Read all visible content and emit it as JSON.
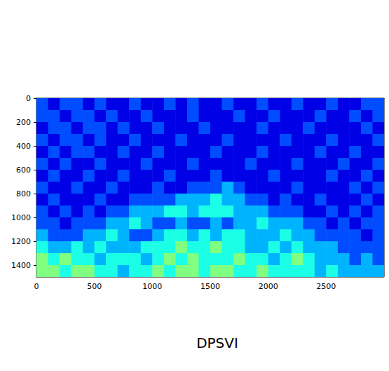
{
  "chart_data": {
    "type": "heatmap",
    "title": "DPSVI",
    "x_bins": [
      0,
      100,
      200,
      300,
      400,
      500,
      600,
      700,
      800,
      900,
      1000,
      1100,
      1200,
      1300,
      1400,
      1500,
      1600,
      1700,
      1800,
      1900,
      2000,
      2100,
      2200,
      2300,
      2400,
      2500,
      2600,
      2700,
      2800,
      2900,
      3000
    ],
    "y_bins": [
      0,
      100,
      200,
      300,
      400,
      500,
      600,
      700,
      800,
      900,
      1000,
      1100,
      1200,
      1300,
      1400,
      1500
    ],
    "cells": [
      [
        3,
        2,
        3,
        3,
        2,
        3,
        2,
        2,
        3,
        2,
        2,
        3,
        2,
        3,
        2,
        2,
        3,
        2,
        2,
        3,
        2,
        2,
        3,
        2,
        2,
        3,
        2,
        2,
        3,
        3
      ],
      [
        3,
        3,
        2,
        3,
        3,
        2,
        3,
        2,
        2,
        3,
        2,
        2,
        2,
        3,
        2,
        2,
        2,
        3,
        2,
        2,
        3,
        2,
        2,
        2,
        3,
        2,
        2,
        3,
        2,
        3
      ],
      [
        2,
        3,
        3,
        2,
        3,
        3,
        2,
        3,
        2,
        2,
        3,
        2,
        2,
        2,
        3,
        2,
        2,
        2,
        2,
        3,
        2,
        2,
        2,
        3,
        2,
        2,
        2,
        2,
        3,
        2
      ],
      [
        3,
        2,
        3,
        3,
        2,
        3,
        2,
        2,
        3,
        2,
        2,
        2,
        3,
        2,
        2,
        2,
        3,
        2,
        2,
        2,
        2,
        3,
        2,
        2,
        2,
        3,
        2,
        2,
        2,
        3
      ],
      [
        2,
        3,
        2,
        3,
        3,
        2,
        2,
        3,
        2,
        2,
        3,
        2,
        2,
        2,
        2,
        3,
        2,
        2,
        2,
        3,
        2,
        2,
        2,
        2,
        3,
        2,
        2,
        3,
        2,
        2
      ],
      [
        3,
        2,
        3,
        2,
        2,
        3,
        2,
        2,
        2,
        3,
        2,
        2,
        2,
        3,
        2,
        2,
        2,
        2,
        3,
        2,
        2,
        2,
        3,
        2,
        2,
        2,
        3,
        2,
        2,
        3
      ],
      [
        2,
        3,
        2,
        2,
        3,
        2,
        2,
        3,
        2,
        2,
        2,
        3,
        2,
        2,
        2,
        3,
        2,
        2,
        2,
        2,
        3,
        2,
        2,
        2,
        2,
        3,
        2,
        2,
        3,
        2
      ],
      [
        3,
        2,
        2,
        3,
        2,
        2,
        3,
        2,
        2,
        2,
        3,
        2,
        2,
        3,
        3,
        3,
        4,
        3,
        2,
        2,
        2,
        2,
        3,
        2,
        2,
        2,
        2,
        3,
        2,
        3
      ],
      [
        2,
        3,
        2,
        2,
        2,
        3,
        2,
        2,
        3,
        3,
        3,
        3,
        4,
        4,
        4,
        5,
        4,
        4,
        3,
        3,
        2,
        3,
        2,
        2,
        3,
        2,
        2,
        2,
        3,
        2
      ],
      [
        3,
        2,
        3,
        2,
        3,
        2,
        3,
        3,
        4,
        4,
        4,
        5,
        5,
        4,
        5,
        5,
        5,
        4,
        4,
        4,
        3,
        3,
        3,
        2,
        2,
        3,
        2,
        3,
        2,
        3
      ],
      [
        3,
        3,
        2,
        3,
        3,
        3,
        4,
        4,
        5,
        4,
        3,
        3,
        4,
        3,
        3,
        4,
        3,
        4,
        4,
        5,
        4,
        4,
        4,
        3,
        3,
        2,
        3,
        2,
        3,
        3
      ],
      [
        4,
        3,
        3,
        3,
        4,
        4,
        5,
        4,
        3,
        3,
        4,
        5,
        5,
        4,
        5,
        4,
        5,
        5,
        4,
        4,
        4,
        5,
        4,
        4,
        3,
        3,
        3,
        3,
        2,
        3
      ],
      [
        5,
        4,
        4,
        5,
        4,
        5,
        4,
        4,
        4,
        5,
        5,
        5,
        6,
        5,
        5,
        6,
        5,
        5,
        4,
        4,
        5,
        4,
        5,
        4,
        4,
        4,
        3,
        3,
        3,
        3
      ],
      [
        6,
        5,
        6,
        5,
        5,
        4,
        5,
        5,
        5,
        4,
        5,
        6,
        5,
        6,
        5,
        5,
        5,
        6,
        5,
        5,
        4,
        5,
        6,
        5,
        4,
        4,
        4,
        3,
        4,
        3
      ],
      [
        6,
        6,
        5,
        6,
        6,
        5,
        5,
        4,
        5,
        5,
        6,
        5,
        6,
        6,
        5,
        6,
        6,
        5,
        5,
        6,
        5,
        5,
        5,
        5,
        4,
        5,
        4,
        4,
        4,
        4
      ]
    ],
    "zlim": [
      1,
      11
    ],
    "xlim": [
      0,
      3000
    ],
    "ylim": [
      0,
      1500
    ],
    "xticks": [
      0,
      500,
      1000,
      1500,
      2000,
      2500
    ],
    "yticks": [
      0,
      200,
      400,
      600,
      800,
      1000,
      1200,
      1400
    ],
    "grid": false
  }
}
